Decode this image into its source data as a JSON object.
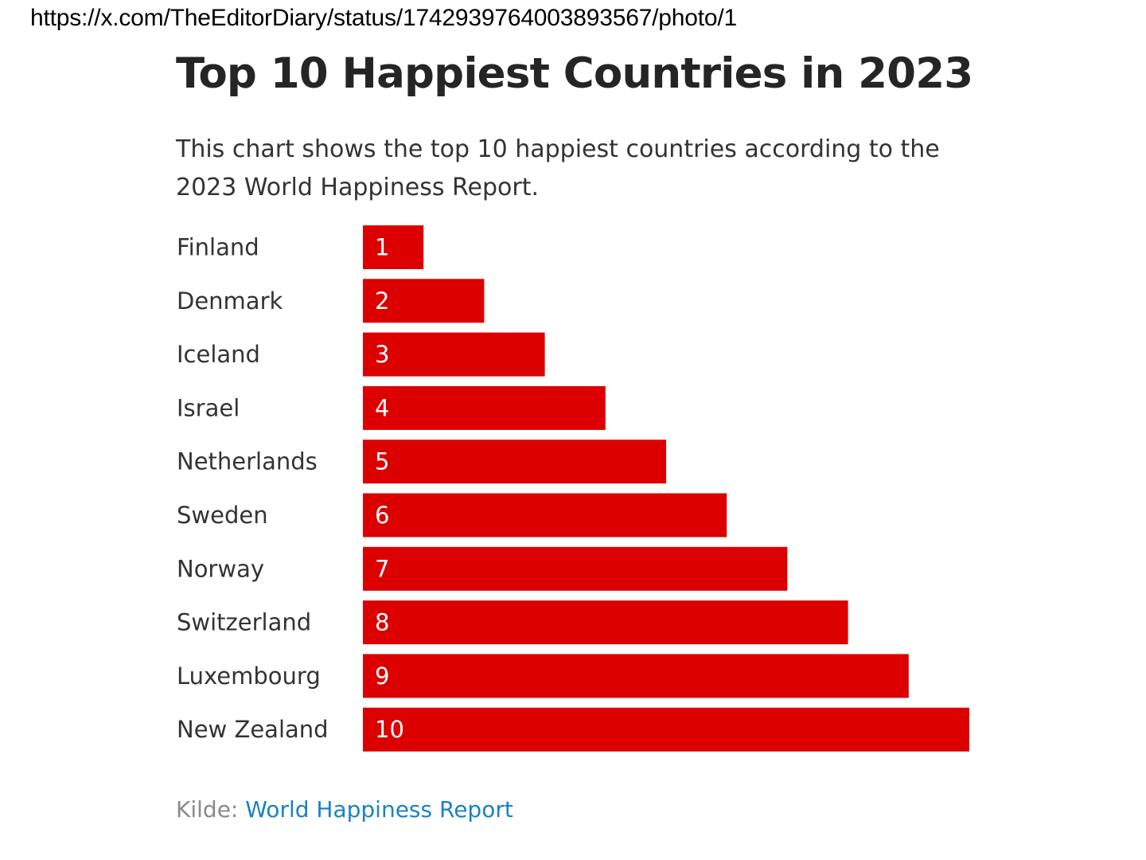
{
  "url": "https://x.com/TheEditorDiary/status/1742939764003893567/photo/1",
  "title": "Top 10 Happiest Countries in 2023",
  "subtitle": "This chart shows the top 10 happiest countries according to the 2023 World Happiness Report.",
  "source": {
    "label": "Kilde: ",
    "link_text": "World Happiness Report"
  },
  "colors": {
    "bar": "#dc0000",
    "bar_label": "#ffffff",
    "category_label": "#333333",
    "source_link": "#1a82c4"
  },
  "chart_data": {
    "type": "bar",
    "orientation": "horizontal",
    "categories": [
      "Finland",
      "Denmark",
      "Iceland",
      "Israel",
      "Netherlands",
      "Sweden",
      "Norway",
      "Switzerland",
      "Luxembourg",
      "New Zealand"
    ],
    "values": [
      1,
      2,
      3,
      4,
      5,
      6,
      7,
      8,
      9,
      10
    ],
    "data_labels": [
      "1",
      "2",
      "3",
      "4",
      "5",
      "6",
      "7",
      "8",
      "9",
      "10"
    ],
    "xlim": [
      0,
      10
    ],
    "grid": false,
    "legend": "none"
  }
}
